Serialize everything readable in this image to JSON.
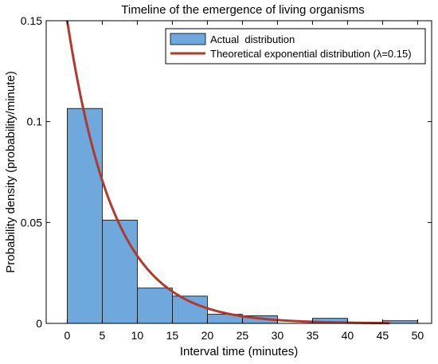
{
  "chart_data": {
    "type": "bar",
    "title": "Timeline of the emergence of living organisms",
    "xlabel": "Interval time (minutes)",
    "ylabel": "Probability density (probability/minute)",
    "xlim": [
      -3,
      52
    ],
    "ylim": [
      0,
      0.15
    ],
    "x_ticks": [
      0,
      5,
      10,
      15,
      20,
      25,
      30,
      35,
      40,
      45,
      50
    ],
    "x_tick_labels": [
      "0",
      "5",
      "10",
      "15",
      "20",
      "25",
      "30",
      "35",
      "40",
      "45",
      "50"
    ],
    "y_ticks": [
      0,
      0.05,
      0.1,
      0.15
    ],
    "y_tick_labels": [
      "0",
      "0.05",
      "0.1",
      "0.15"
    ],
    "grid": false,
    "legend_position": "top-right",
    "bins": [
      {
        "start": 0,
        "end": 5,
        "value": 0.1065
      },
      {
        "start": 5,
        "end": 10,
        "value": 0.0512
      },
      {
        "start": 10,
        "end": 15,
        "value": 0.0175
      },
      {
        "start": 15,
        "end": 20,
        "value": 0.0135
      },
      {
        "start": 20,
        "end": 25,
        "value": 0.0045
      },
      {
        "start": 25,
        "end": 30,
        "value": 0.0038
      },
      {
        "start": 30,
        "end": 35,
        "value": 0.0
      },
      {
        "start": 35,
        "end": 40,
        "value": 0.0025
      },
      {
        "start": 40,
        "end": 45,
        "value": 0.0
      },
      {
        "start": 45,
        "end": 50,
        "value": 0.0013
      }
    ],
    "series": [
      {
        "name": "Actual  distribution",
        "kind": "histogram",
        "color": "#6fa8dc"
      },
      {
        "name": "Theoretical exponential distribution (λ=0.15)",
        "kind": "curve",
        "color": "#b03a2e",
        "lambda": 0.15
      }
    ]
  }
}
